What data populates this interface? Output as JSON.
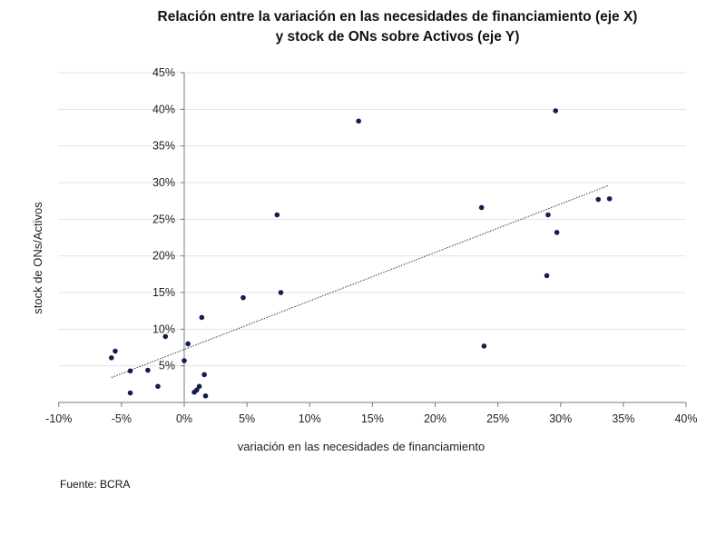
{
  "chart_data": {
    "type": "scatter",
    "title_line1": "Relación entre la variación en las necesidades de financiamiento (eje X)",
    "title_line2": "y stock de ONs sobre Activos (eje Y)",
    "xlabel": "variación en las necesidades de financiamiento",
    "ylabel": "stock de ONs/Activos",
    "xlim": [
      -10,
      40
    ],
    "ylim": [
      0,
      45
    ],
    "x_ticks": [
      "-10%",
      "-5%",
      "0%",
      "5%",
      "10%",
      "15%",
      "20%",
      "25%",
      "30%",
      "35%",
      "40%"
    ],
    "y_ticks": [
      "5%",
      "10%",
      "15%",
      "20%",
      "25%",
      "30%",
      "35%",
      "40%",
      "45%"
    ],
    "grid": "horizontal",
    "trendline": {
      "style": "dotted",
      "x": [
        -5.8,
        33.8
      ],
      "y": [
        3.4,
        29.6
      ]
    },
    "points": [
      {
        "x": -5.8,
        "y": 6.1
      },
      {
        "x": -5.5,
        "y": 7.0
      },
      {
        "x": -4.3,
        "y": 4.3
      },
      {
        "x": -4.3,
        "y": 1.3
      },
      {
        "x": -2.9,
        "y": 4.4
      },
      {
        "x": -2.1,
        "y": 2.2
      },
      {
        "x": -1.5,
        "y": 9.0
      },
      {
        "x": 0.0,
        "y": 5.7
      },
      {
        "x": 0.3,
        "y": 8.0
      },
      {
        "x": 0.8,
        "y": 1.4
      },
      {
        "x": 1.0,
        "y": 1.7
      },
      {
        "x": 1.2,
        "y": 2.2
      },
      {
        "x": 1.4,
        "y": 11.6
      },
      {
        "x": 1.6,
        "y": 3.8
      },
      {
        "x": 1.7,
        "y": 0.9
      },
      {
        "x": 4.7,
        "y": 14.3
      },
      {
        "x": 7.4,
        "y": 25.6
      },
      {
        "x": 7.7,
        "y": 15.0
      },
      {
        "x": 13.9,
        "y": 38.4
      },
      {
        "x": 23.7,
        "y": 26.6
      },
      {
        "x": 23.9,
        "y": 7.7
      },
      {
        "x": 28.9,
        "y": 17.3
      },
      {
        "x": 29.0,
        "y": 25.6
      },
      {
        "x": 29.6,
        "y": 39.8
      },
      {
        "x": 29.7,
        "y": 23.2
      },
      {
        "x": 33.0,
        "y": 27.7
      },
      {
        "x": 33.9,
        "y": 27.8
      }
    ],
    "point_color": "#10204a",
    "trendline_color": "#3a4a6a"
  },
  "source": "Fuente: BCRA"
}
